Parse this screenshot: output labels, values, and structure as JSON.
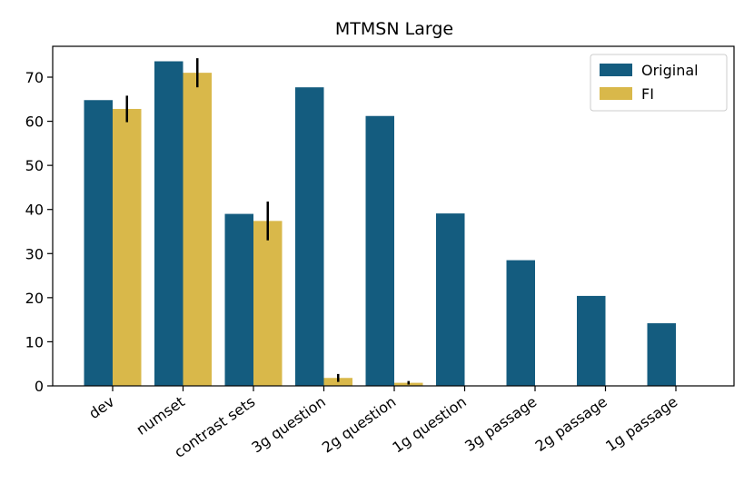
{
  "chart_data": {
    "type": "bar",
    "title": "MTMSN Large",
    "xlabel": "",
    "ylabel": "",
    "categories": [
      "dev",
      "numset",
      "contrast sets",
      "3g question",
      "2g question",
      "1g question",
      "3g passage",
      "2g passage",
      "1g passage"
    ],
    "series": [
      {
        "name": "Original",
        "color": "#145c7f",
        "values": [
          64.8,
          73.6,
          39.0,
          67.7,
          61.2,
          39.1,
          28.5,
          20.4,
          14.2
        ]
      },
      {
        "name": "FI",
        "color": "#d9b84a",
        "values": [
          62.8,
          71.0,
          37.4,
          1.8,
          0.7,
          0.1,
          0,
          0,
          0
        ],
        "error": [
          3.0,
          3.3,
          4.4,
          0.9,
          0.4,
          0,
          0,
          0,
          0
        ]
      }
    ],
    "ylim": [
      0,
      77
    ],
    "yticks": [
      0,
      10,
      20,
      30,
      40,
      50,
      60,
      70
    ],
    "legend_position": "top-right",
    "grid": false
  }
}
